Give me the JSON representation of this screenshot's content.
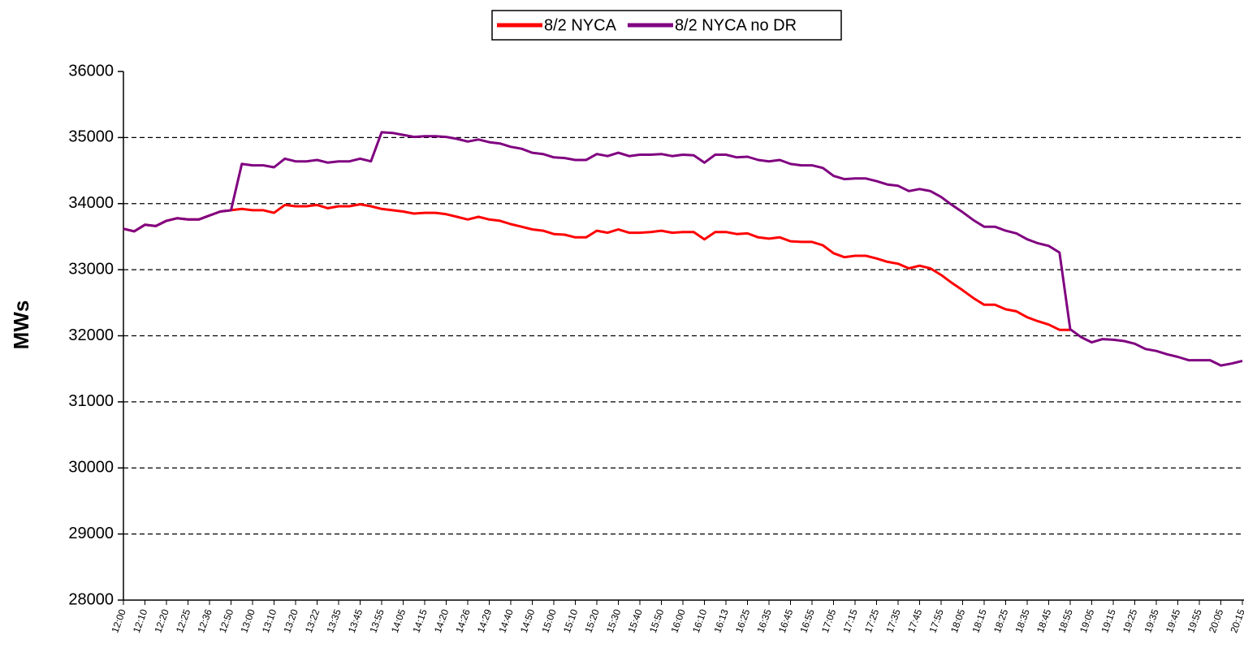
{
  "chart_data": {
    "type": "line",
    "ylabel": "MWs",
    "categories": [
      "12:00",
      null,
      "12:10",
      null,
      "12:20",
      null,
      "12:25",
      null,
      "12:36",
      null,
      "12:50",
      null,
      "13:00",
      null,
      "13:10",
      null,
      "13:20",
      null,
      "13:22",
      null,
      "13:35",
      null,
      "13:45",
      null,
      "13:55",
      null,
      "14:05",
      null,
      "14:15",
      null,
      "14:20",
      null,
      "14:26",
      null,
      "14:29",
      null,
      "14:40",
      null,
      "14:50",
      null,
      "15:00",
      null,
      "15:10",
      null,
      "15:20",
      null,
      "15:30",
      null,
      "15:40",
      null,
      "15:50",
      null,
      "16:00",
      null,
      "16:10",
      null,
      "16:13",
      null,
      "16:25",
      null,
      "16:35",
      null,
      "16:45",
      null,
      "16:55",
      null,
      "17:05",
      null,
      "17:15",
      null,
      "17:25",
      null,
      "17:35",
      null,
      "17:45",
      null,
      "17:55",
      null,
      "18:05",
      null,
      "18:15",
      null,
      "18:25",
      null,
      "18:35",
      null,
      "18:45",
      null,
      "18:55",
      null,
      "19:05",
      null,
      "19:15",
      null,
      "19:25",
      null,
      "19:35",
      null,
      "19:45",
      null,
      "19:55",
      null,
      "20:05",
      null,
      "20:15"
    ],
    "series": [
      {
        "name": "8/2 NYCA",
        "color": "#ff0000",
        "values": [
          33620,
          33580,
          33680,
          33660,
          33740,
          33780,
          33760,
          33760,
          33820,
          33880,
          33900,
          33920,
          33900,
          33900,
          33860,
          33980,
          33960,
          33960,
          33980,
          33930,
          33960,
          33960,
          33990,
          33960,
          33920,
          33900,
          33880,
          33850,
          33860,
          33860,
          33840,
          33800,
          33760,
          33800,
          33760,
          33740,
          33690,
          33650,
          33610,
          33590,
          33540,
          33530,
          33490,
          33490,
          33590,
          33560,
          33610,
          33560,
          33560,
          33570,
          33590,
          33560,
          33570,
          33570,
          33460,
          33570,
          33570,
          33540,
          33550,
          33490,
          33470,
          33490,
          33430,
          33420,
          33420,
          33370,
          33250,
          33190,
          33210,
          33210,
          33170,
          33120,
          33090,
          33020,
          33060,
          33020,
          32920,
          32800,
          32690,
          32570,
          32470,
          32470,
          32400,
          32370,
          32280,
          32220,
          32170,
          32090,
          32090,
          null,
          null,
          null,
          null,
          null,
          null,
          null,
          null,
          null,
          null,
          null,
          null,
          null,
          null,
          null,
          null
        ]
      },
      {
        "name": "8/2 NYCA no DR",
        "color": "#800080",
        "values": [
          33620,
          33580,
          33680,
          33660,
          33740,
          33780,
          33760,
          33760,
          33820,
          33880,
          33900,
          34600,
          34580,
          34580,
          34550,
          34680,
          34640,
          34640,
          34660,
          34620,
          34640,
          34640,
          34680,
          34640,
          35080,
          35070,
          35040,
          35010,
          35020,
          35020,
          35010,
          34980,
          34940,
          34970,
          34930,
          34910,
          34860,
          34830,
          34770,
          34750,
          34700,
          34690,
          34660,
          34660,
          34750,
          34720,
          34770,
          34720,
          34740,
          34740,
          34750,
          34720,
          34740,
          34730,
          34620,
          34740,
          34740,
          34700,
          34710,
          34660,
          34640,
          34660,
          34600,
          34580,
          34580,
          34540,
          34420,
          34370,
          34380,
          34380,
          34340,
          34290,
          34270,
          34190,
          34220,
          34190,
          34100,
          33980,
          33870,
          33750,
          33650,
          33650,
          33590,
          33550,
          33460,
          33400,
          33360,
          33260,
          32100,
          31980,
          31900,
          31950,
          31940,
          31920,
          31880,
          31800,
          31770,
          31720,
          31680,
          31630,
          31630,
          31630,
          31550,
          31580,
          31620
        ]
      }
    ],
    "ylim": [
      28000,
      36000
    ],
    "yticks": [
      28000,
      29000,
      30000,
      31000,
      32000,
      33000,
      34000,
      35000,
      36000
    ],
    "grid": true,
    "legend": "top"
  }
}
